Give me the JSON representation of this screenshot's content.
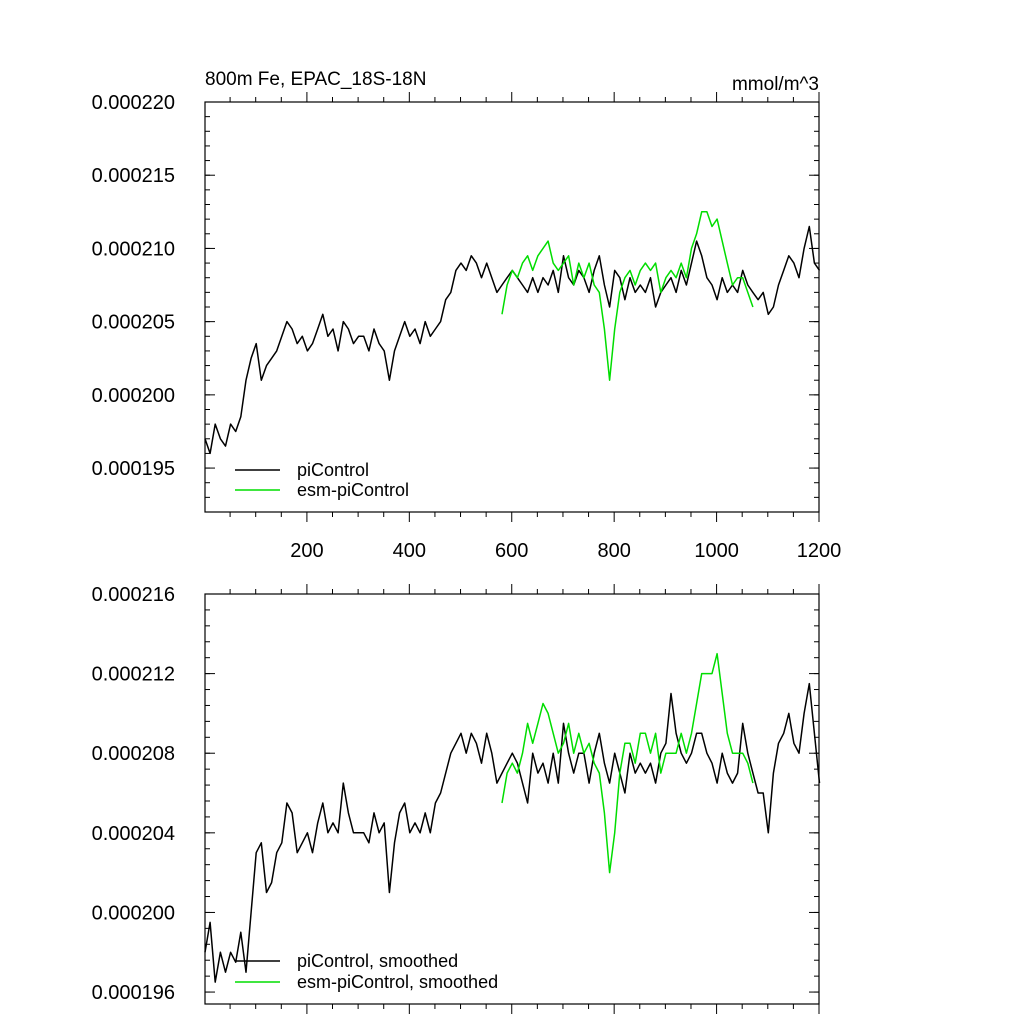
{
  "chart_data": [
    {
      "type": "line",
      "title": "800m Fe, EPAC_18S-18N",
      "units": "mmol/m^3",
      "xlim": [
        1,
        1200
      ],
      "ylim": [
        0.000192,
        0.00022
      ],
      "yticks": [
        0.000195,
        0.0002,
        0.000205,
        0.00021,
        0.000215,
        0.00022
      ],
      "ytick_labels": [
        "0.000195",
        "0.000200",
        "0.000205",
        "0.000210",
        "0.000215",
        "0.000220"
      ],
      "xticks": [
        200,
        400,
        600,
        800,
        1000,
        1200
      ],
      "xtick_labels": [
        "200",
        "400",
        "600",
        "800",
        "1000",
        "1200"
      ],
      "show_xtick_labels": true,
      "legend": [
        {
          "label": "piControl",
          "color": "#000000"
        },
        {
          "label": "esm-piControl",
          "color": "#00dd00"
        }
      ],
      "series": [
        {
          "name": "piControl",
          "color": "#000000",
          "x_start": 1,
          "x_step": 10,
          "values": [
            0.000197,
            0.000196,
            0.000198,
            0.000197,
            0.0001965,
            0.000198,
            0.0001975,
            0.0001985,
            0.000201,
            0.0002025,
            0.0002035,
            0.000201,
            0.000202,
            0.0002025,
            0.000203,
            0.000204,
            0.000205,
            0.0002045,
            0.0002035,
            0.000204,
            0.000203,
            0.0002035,
            0.0002045,
            0.0002055,
            0.000204,
            0.0002045,
            0.000203,
            0.000205,
            0.0002045,
            0.0002035,
            0.000204,
            0.000204,
            0.000203,
            0.0002045,
            0.0002035,
            0.000203,
            0.000201,
            0.000203,
            0.000204,
            0.000205,
            0.000204,
            0.0002045,
            0.0002035,
            0.000205,
            0.000204,
            0.0002045,
            0.000205,
            0.0002065,
            0.000207,
            0.0002085,
            0.000209,
            0.0002085,
            0.0002095,
            0.000209,
            0.000208,
            0.000209,
            0.000208,
            0.000207,
            0.0002075,
            0.000208,
            0.0002085,
            0.000208,
            0.0002075,
            0.000207,
            0.000208,
            0.000207,
            0.000208,
            0.0002075,
            0.0002085,
            0.000207,
            0.0002095,
            0.000208,
            0.0002075,
            0.0002085,
            0.000208,
            0.000207,
            0.0002085,
            0.0002095,
            0.0002075,
            0.000206,
            0.0002085,
            0.000208,
            0.0002065,
            0.000208,
            0.000207,
            0.0002075,
            0.000207,
            0.000208,
            0.000206,
            0.000207,
            0.0002075,
            0.000208,
            0.000207,
            0.0002085,
            0.0002075,
            0.000209,
            0.0002105,
            0.0002095,
            0.000208,
            0.0002075,
            0.0002065,
            0.000208,
            0.000207,
            0.0002075,
            0.000207,
            0.0002085,
            0.0002075,
            0.000207,
            0.0002065,
            0.000207,
            0.0002055,
            0.000206,
            0.0002075,
            0.0002085,
            0.0002095,
            0.000209,
            0.000208,
            0.00021,
            0.0002115,
            0.000209,
            0.0002085
          ]
        },
        {
          "name": "esm-piControl",
          "color": "#00dd00",
          "x_start": 581,
          "x_step": 10,
          "values": [
            0.0002055,
            0.0002075,
            0.0002085,
            0.000208,
            0.000209,
            0.0002095,
            0.0002085,
            0.0002095,
            0.00021,
            0.0002105,
            0.000209,
            0.0002085,
            0.000209,
            0.0002095,
            0.0002075,
            0.000209,
            0.000208,
            0.000209,
            0.0002075,
            0.000207,
            0.0002045,
            0.000201,
            0.0002045,
            0.000207,
            0.000208,
            0.0002085,
            0.0002075,
            0.0002085,
            0.000209,
            0.0002085,
            0.000209,
            0.000207,
            0.000208,
            0.0002085,
            0.000208,
            0.000209,
            0.000208,
            0.00021,
            0.000211,
            0.0002125,
            0.0002125,
            0.0002115,
            0.000212,
            0.0002105,
            0.000209,
            0.0002075,
            0.000208,
            0.000208,
            0.000207,
            0.000206
          ]
        }
      ]
    },
    {
      "type": "line",
      "title": "",
      "units": "",
      "xlim": [
        1,
        1200
      ],
      "ylim": [
        0.0001954,
        0.000216
      ],
      "yticks": [
        0.000196,
        0.0002,
        0.000204,
        0.000208,
        0.000212,
        0.000216
      ],
      "ytick_labels": [
        "0.000196",
        "0.000200",
        "0.000204",
        "0.000208",
        "0.000212",
        "0.000216"
      ],
      "xticks": [
        200,
        400,
        600,
        800,
        1000,
        1200
      ],
      "xtick_labels": [],
      "show_xtick_labels": false,
      "legend": [
        {
          "label": "piControl, smoothed",
          "color": "#000000"
        },
        {
          "label": "esm-piControl, smoothed",
          "color": "#00dd00"
        }
      ],
      "series": [
        {
          "name": "piControl, smoothed",
          "color": "#000000",
          "x_start": 1,
          "x_step": 10,
          "values": [
            0.000198,
            0.0001995,
            0.0001965,
            0.000198,
            0.000197,
            0.000198,
            0.0001975,
            0.000199,
            0.000197,
            0.0002,
            0.000203,
            0.0002035,
            0.000201,
            0.0002015,
            0.000203,
            0.0002035,
            0.0002055,
            0.000205,
            0.000203,
            0.0002035,
            0.000204,
            0.000203,
            0.0002045,
            0.0002055,
            0.000204,
            0.0002045,
            0.000204,
            0.0002065,
            0.000205,
            0.000204,
            0.000204,
            0.000204,
            0.0002035,
            0.000205,
            0.000204,
            0.0002045,
            0.000201,
            0.0002035,
            0.000205,
            0.0002055,
            0.000204,
            0.0002045,
            0.000204,
            0.000205,
            0.000204,
            0.0002055,
            0.000206,
            0.000207,
            0.000208,
            0.0002085,
            0.000209,
            0.000208,
            0.000209,
            0.0002085,
            0.0002075,
            0.000209,
            0.000208,
            0.0002065,
            0.000207,
            0.0002075,
            0.000208,
            0.0002075,
            0.0002065,
            0.0002055,
            0.000208,
            0.000207,
            0.0002075,
            0.0002065,
            0.000208,
            0.0002065,
            0.0002095,
            0.000208,
            0.000207,
            0.000208,
            0.000208,
            0.0002065,
            0.000208,
            0.000209,
            0.0002075,
            0.0002065,
            0.000208,
            0.000207,
            0.000206,
            0.000208,
            0.000207,
            0.0002075,
            0.000207,
            0.0002075,
            0.0002065,
            0.000208,
            0.0002085,
            0.000211,
            0.000209,
            0.000208,
            0.0002075,
            0.000208,
            0.000209,
            0.000209,
            0.000208,
            0.0002075,
            0.0002065,
            0.000208,
            0.000207,
            0.0002065,
            0.000207,
            0.0002095,
            0.000208,
            0.000207,
            0.000206,
            0.000206,
            0.000204,
            0.000207,
            0.0002085,
            0.000209,
            0.00021,
            0.0002085,
            0.000208,
            0.00021,
            0.0002115,
            0.000209,
            0.0002065
          ]
        },
        {
          "name": "esm-piControl, smoothed",
          "color": "#00dd00",
          "x_start": 581,
          "x_step": 10,
          "values": [
            0.0002055,
            0.000207,
            0.0002075,
            0.000207,
            0.000208,
            0.0002095,
            0.0002085,
            0.0002095,
            0.0002105,
            0.00021,
            0.000209,
            0.000208,
            0.0002085,
            0.0002095,
            0.000208,
            0.000209,
            0.000208,
            0.0002085,
            0.0002075,
            0.000207,
            0.000205,
            0.000202,
            0.000204,
            0.000207,
            0.0002085,
            0.0002085,
            0.0002075,
            0.000209,
            0.000209,
            0.000208,
            0.000209,
            0.000207,
            0.000208,
            0.000208,
            0.000208,
            0.000209,
            0.000208,
            0.000209,
            0.0002105,
            0.000212,
            0.000212,
            0.000212,
            0.000213,
            0.000211,
            0.000209,
            0.000208,
            0.000208,
            0.000208,
            0.0002075,
            0.0002065
          ]
        }
      ]
    }
  ]
}
